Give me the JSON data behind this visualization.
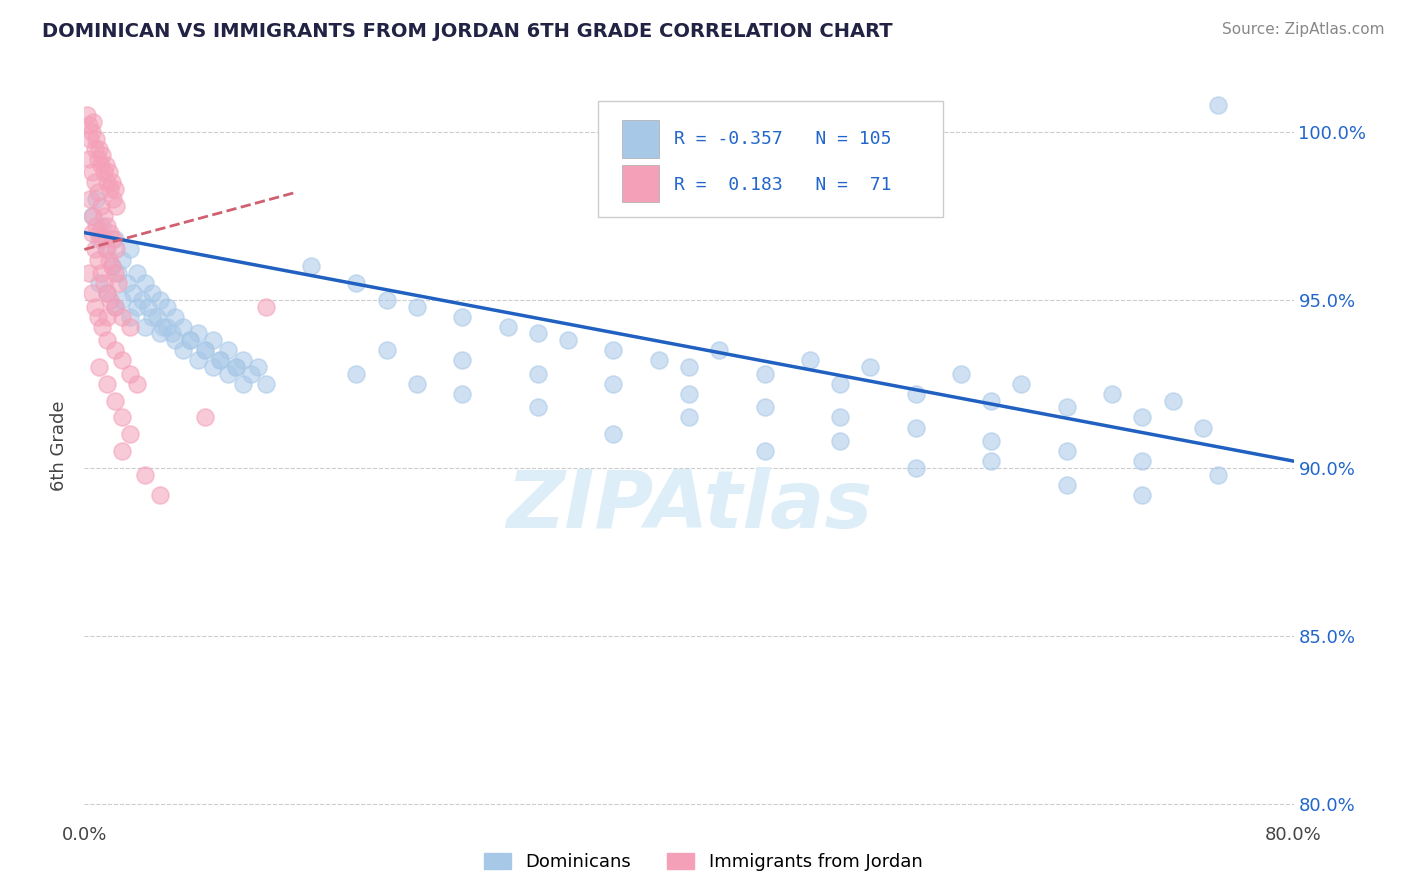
{
  "title": "DOMINICAN VS IMMIGRANTS FROM JORDAN 6TH GRADE CORRELATION CHART",
  "source": "Source: ZipAtlas.com",
  "ylabel": "6th Grade",
  "xmin": 0.0,
  "xmax": 80.0,
  "ymin": 79.5,
  "ymax": 101.8,
  "R_blue": -0.357,
  "N_blue": 105,
  "R_pink": 0.183,
  "N_pink": 71,
  "blue_color": "#a8c8e8",
  "pink_color": "#f4a0b8",
  "trend_blue_color": "#2060c0",
  "trend_pink_color": "#d06070",
  "watermark_color": "#ddeef8",
  "legend_label_blue": "Dominicans",
  "legend_label_pink": "Immigrants from Jordan",
  "y_ticks": [
    80.0,
    85.0,
    90.0,
    95.0,
    100.0
  ],
  "blue_trend_x": [
    0.0,
    80.0
  ],
  "blue_trend_y": [
    97.0,
    90.2
  ],
  "pink_trend_x": [
    0.0,
    14.0
  ],
  "pink_trend_y": [
    96.5,
    98.2
  ],
  "blue_scatter": [
    [
      0.5,
      97.5
    ],
    [
      0.8,
      98.0
    ],
    [
      1.0,
      96.8
    ],
    [
      1.2,
      97.2
    ],
    [
      1.5,
      96.5
    ],
    [
      1.8,
      96.0
    ],
    [
      2.0,
      96.8
    ],
    [
      2.2,
      95.8
    ],
    [
      2.5,
      96.2
    ],
    [
      2.8,
      95.5
    ],
    [
      3.0,
      96.5
    ],
    [
      3.2,
      95.2
    ],
    [
      3.5,
      95.8
    ],
    [
      3.8,
      95.0
    ],
    [
      4.0,
      95.5
    ],
    [
      4.2,
      94.8
    ],
    [
      4.5,
      95.2
    ],
    [
      4.8,
      94.5
    ],
    [
      5.0,
      95.0
    ],
    [
      5.2,
      94.2
    ],
    [
      5.5,
      94.8
    ],
    [
      5.8,
      94.0
    ],
    [
      6.0,
      94.5
    ],
    [
      6.5,
      94.2
    ],
    [
      7.0,
      93.8
    ],
    [
      7.5,
      94.0
    ],
    [
      8.0,
      93.5
    ],
    [
      8.5,
      93.8
    ],
    [
      9.0,
      93.2
    ],
    [
      9.5,
      93.5
    ],
    [
      10.0,
      93.0
    ],
    [
      10.5,
      93.2
    ],
    [
      11.0,
      92.8
    ],
    [
      11.5,
      93.0
    ],
    [
      12.0,
      92.5
    ],
    [
      1.0,
      95.5
    ],
    [
      1.5,
      95.2
    ],
    [
      2.0,
      94.8
    ],
    [
      2.5,
      95.0
    ],
    [
      3.0,
      94.5
    ],
    [
      3.5,
      94.8
    ],
    [
      4.0,
      94.2
    ],
    [
      4.5,
      94.5
    ],
    [
      5.0,
      94.0
    ],
    [
      5.5,
      94.2
    ],
    [
      6.0,
      93.8
    ],
    [
      6.5,
      93.5
    ],
    [
      7.0,
      93.8
    ],
    [
      7.5,
      93.2
    ],
    [
      8.0,
      93.5
    ],
    [
      8.5,
      93.0
    ],
    [
      9.0,
      93.2
    ],
    [
      9.5,
      92.8
    ],
    [
      10.0,
      93.0
    ],
    [
      10.5,
      92.5
    ],
    [
      15.0,
      96.0
    ],
    [
      18.0,
      95.5
    ],
    [
      20.0,
      95.0
    ],
    [
      22.0,
      94.8
    ],
    [
      25.0,
      94.5
    ],
    [
      28.0,
      94.2
    ],
    [
      30.0,
      94.0
    ],
    [
      32.0,
      93.8
    ],
    [
      35.0,
      93.5
    ],
    [
      38.0,
      93.2
    ],
    [
      40.0,
      93.0
    ],
    [
      42.0,
      93.5
    ],
    [
      45.0,
      92.8
    ],
    [
      48.0,
      93.2
    ],
    [
      50.0,
      92.5
    ],
    [
      52.0,
      93.0
    ],
    [
      55.0,
      92.2
    ],
    [
      58.0,
      92.8
    ],
    [
      60.0,
      92.0
    ],
    [
      62.0,
      92.5
    ],
    [
      65.0,
      91.8
    ],
    [
      68.0,
      92.2
    ],
    [
      70.0,
      91.5
    ],
    [
      72.0,
      92.0
    ],
    [
      74.0,
      91.2
    ],
    [
      20.0,
      93.5
    ],
    [
      25.0,
      93.2
    ],
    [
      30.0,
      92.8
    ],
    [
      35.0,
      92.5
    ],
    [
      40.0,
      92.2
    ],
    [
      45.0,
      91.8
    ],
    [
      50.0,
      91.5
    ],
    [
      55.0,
      91.2
    ],
    [
      60.0,
      90.8
    ],
    [
      65.0,
      90.5
    ],
    [
      70.0,
      90.2
    ],
    [
      75.0,
      89.8
    ],
    [
      40.0,
      91.5
    ],
    [
      50.0,
      90.8
    ],
    [
      60.0,
      90.2
    ],
    [
      65.0,
      89.5
    ],
    [
      70.0,
      89.2
    ],
    [
      55.0,
      90.0
    ],
    [
      45.0,
      90.5
    ],
    [
      35.0,
      91.0
    ],
    [
      30.0,
      91.8
    ],
    [
      25.0,
      92.2
    ],
    [
      22.0,
      92.5
    ],
    [
      18.0,
      92.8
    ],
    [
      75.0,
      100.8
    ]
  ],
  "pink_scatter": [
    [
      0.2,
      100.5
    ],
    [
      0.3,
      100.2
    ],
    [
      0.4,
      99.8
    ],
    [
      0.5,
      100.0
    ],
    [
      0.6,
      100.3
    ],
    [
      0.7,
      99.5
    ],
    [
      0.8,
      99.8
    ],
    [
      0.9,
      99.2
    ],
    [
      1.0,
      99.5
    ],
    [
      1.1,
      99.0
    ],
    [
      1.2,
      99.3
    ],
    [
      1.3,
      98.8
    ],
    [
      1.4,
      99.0
    ],
    [
      1.5,
      98.5
    ],
    [
      1.6,
      98.8
    ],
    [
      1.7,
      98.3
    ],
    [
      1.8,
      98.5
    ],
    [
      1.9,
      98.0
    ],
    [
      2.0,
      98.3
    ],
    [
      2.1,
      97.8
    ],
    [
      0.3,
      99.2
    ],
    [
      0.5,
      98.8
    ],
    [
      0.7,
      98.5
    ],
    [
      0.9,
      98.2
    ],
    [
      1.1,
      97.8
    ],
    [
      1.3,
      97.5
    ],
    [
      1.5,
      97.2
    ],
    [
      1.7,
      97.0
    ],
    [
      1.9,
      96.8
    ],
    [
      2.1,
      96.5
    ],
    [
      0.4,
      98.0
    ],
    [
      0.6,
      97.5
    ],
    [
      0.8,
      97.2
    ],
    [
      1.0,
      97.0
    ],
    [
      1.2,
      96.8
    ],
    [
      1.4,
      96.5
    ],
    [
      1.6,
      96.2
    ],
    [
      1.8,
      96.0
    ],
    [
      2.0,
      95.8
    ],
    [
      2.2,
      95.5
    ],
    [
      0.5,
      97.0
    ],
    [
      0.7,
      96.5
    ],
    [
      0.9,
      96.2
    ],
    [
      1.1,
      95.8
    ],
    [
      1.3,
      95.5
    ],
    [
      1.5,
      95.2
    ],
    [
      1.7,
      95.0
    ],
    [
      2.0,
      94.8
    ],
    [
      2.5,
      94.5
    ],
    [
      3.0,
      94.2
    ],
    [
      0.3,
      95.8
    ],
    [
      0.5,
      95.2
    ],
    [
      0.7,
      94.8
    ],
    [
      0.9,
      94.5
    ],
    [
      1.2,
      94.2
    ],
    [
      1.5,
      93.8
    ],
    [
      2.0,
      93.5
    ],
    [
      2.5,
      93.2
    ],
    [
      3.0,
      92.8
    ],
    [
      3.5,
      92.5
    ],
    [
      1.0,
      93.0
    ],
    [
      1.5,
      92.5
    ],
    [
      2.0,
      92.0
    ],
    [
      2.5,
      91.5
    ],
    [
      3.0,
      91.0
    ],
    [
      1.5,
      94.5
    ],
    [
      2.5,
      90.5
    ],
    [
      4.0,
      89.8
    ],
    [
      5.0,
      89.2
    ],
    [
      8.0,
      91.5
    ],
    [
      12.0,
      94.8
    ]
  ]
}
